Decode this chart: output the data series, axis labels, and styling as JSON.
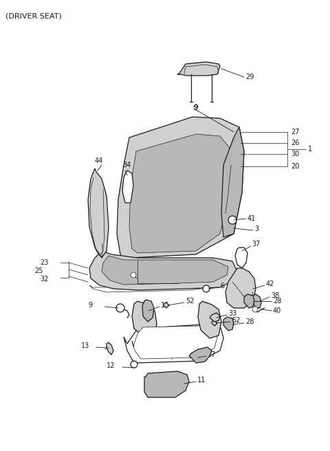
{
  "title": "(DRIVER SEAT)",
  "bg": "#ffffff",
  "lc": "#1a1a1a",
  "gray_light": "#d0d0d0",
  "gray_mid": "#b8b8b8",
  "gray_dark": "#989898",
  "lw_main": 0.9,
  "lw_thin": 0.5,
  "fs_label": 7,
  "fs_title": 8
}
